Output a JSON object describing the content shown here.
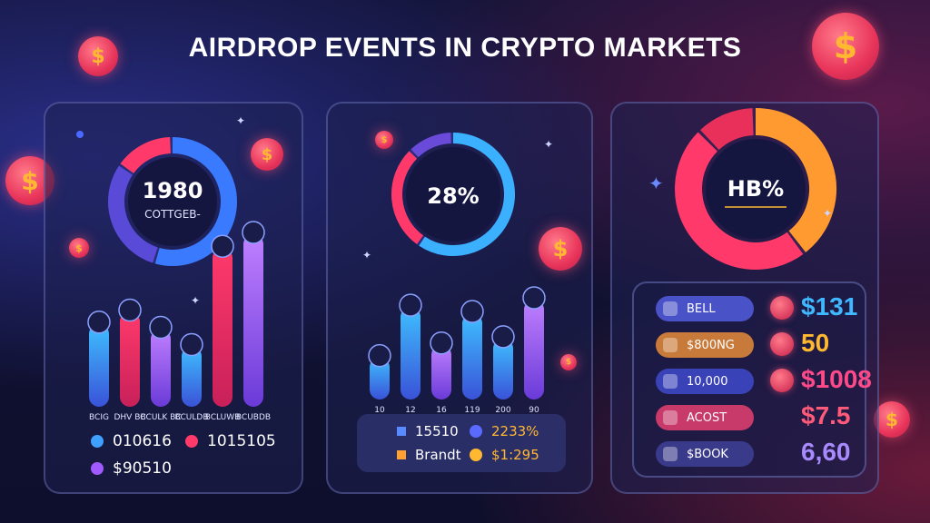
{
  "title": "AIRDROP EVENTS IN CRYPTO MARKETS",
  "colors": {
    "blue": "#3fa0ff",
    "pink": "#ff3a6a",
    "purple": "#a05aff",
    "orange": "#ffa030",
    "gold": "#ffb830"
  },
  "icons": [
    "dollar-coin-icon",
    "sparkle-icon",
    "avatar-icon"
  ],
  "chart_data": [
    {
      "type": "pie",
      "title": "",
      "center_value": "1980",
      "center_label": "COTTGEB-",
      "slices": [
        {
          "name": "blue",
          "value": 55
        },
        {
          "name": "purple",
          "value": 30
        },
        {
          "name": "pink",
          "value": 15
        }
      ],
      "bar_chart": {
        "type": "bar",
        "categories": [
          "1",
          "2",
          "3",
          "4",
          "5",
          "6"
        ],
        "series": [
          {
            "name": "",
            "values": [
              48,
              55,
              45,
              35,
              92,
              100
            ]
          }
        ],
        "tick_labels": [
          "BCIG",
          "DHV BC",
          "BCULK BC",
          "BCULDB",
          "BCLUWB",
          "BCUBDB"
        ]
      },
      "legend": [
        {
          "label": "010616",
          "color": "#3fa0ff"
        },
        {
          "label": "1015105",
          "color": "#ff3a6a"
        },
        {
          "label": "$90510",
          "color": "#a05aff"
        }
      ]
    },
    {
      "type": "pie",
      "title": "",
      "center_value": "28%",
      "slices": [
        {
          "name": "blue",
          "value": 60
        },
        {
          "name": "pink",
          "value": 28
        },
        {
          "name": "purple",
          "value": 12
        }
      ],
      "bar_chart": {
        "type": "bar",
        "categories": [
          "1",
          "2",
          "3",
          "4",
          "5",
          "6"
        ],
        "tick_labels": [
          "10",
          "12",
          "16",
          "119",
          "200",
          "90"
        ],
        "series": [
          {
            "name": "",
            "values": [
              40,
              88,
              52,
              82,
              58,
              95
            ]
          }
        ]
      },
      "legend": [
        {
          "label": "15510",
          "color": "#3fa0ff"
        },
        {
          "label": "2233%",
          "color": "#5a6aff",
          "value_color": "#ffb830"
        },
        {
          "label": "Brandt",
          "color": "#ffa030"
        },
        {
          "label": "$1:295",
          "color": "#ffb830",
          "value_color": "#ffb830"
        }
      ]
    },
    {
      "type": "pie",
      "title": "",
      "center_value": "HB%",
      "slices": [
        {
          "name": "orange",
          "value": 40
        },
        {
          "name": "pink",
          "value": 48
        },
        {
          "name": "red",
          "value": 12
        }
      ],
      "table": {
        "type": "table",
        "rows": [
          {
            "label": "BELL",
            "value": "$131",
            "pill_color": "#4a52c8",
            "value_color": "#3fb8ff"
          },
          {
            "label": "$800NG",
            "value": "50",
            "pill_color": "#c87a3a",
            "value_color": "#ffb830"
          },
          {
            "label": "10,000",
            "value": "$1008",
            "pill_color": "#3a42b8",
            "value_color": "#ff4a8a"
          },
          {
            "label": "ACOST",
            "value": "$7.5",
            "pill_color": "#c83a6a",
            "value_color": "#ff5a7a"
          },
          {
            "label": "$BOOK",
            "value": "6,60",
            "pill_color": "#3a3a8a",
            "value_color": "#a88aff"
          }
        ]
      }
    }
  ]
}
